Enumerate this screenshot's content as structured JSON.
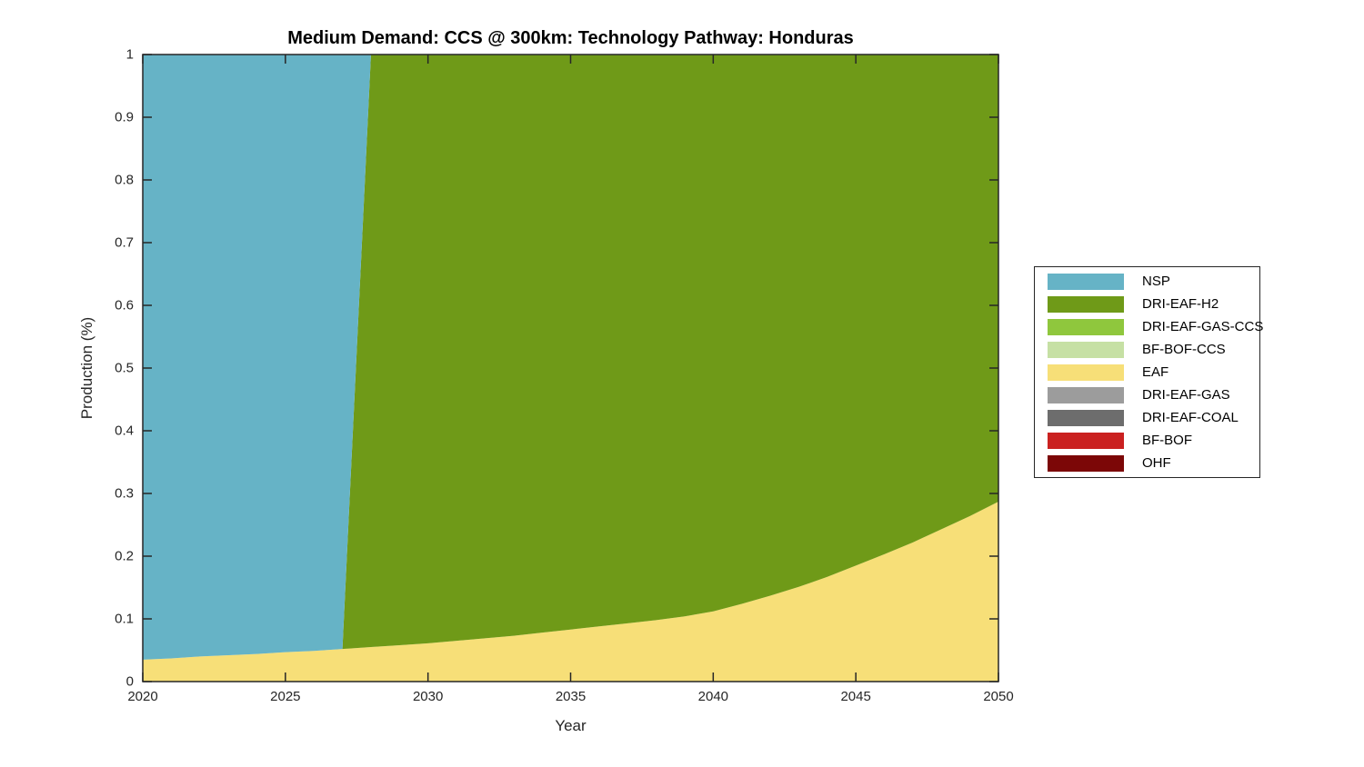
{
  "chart_data": {
    "type": "area",
    "stacked": true,
    "title": "Medium Demand: CCS @ 300km: Technology Pathway: Honduras",
    "xlabel": "Year",
    "ylabel": "Production (%)",
    "xlim": [
      2020,
      2050
    ],
    "ylim": [
      0,
      1
    ],
    "grid": false,
    "legend_position": "right-outside",
    "colors": {
      "axis": "#262626",
      "text": "#000000",
      "background": "#ffffff"
    },
    "xticks": [
      {
        "value": 2020,
        "label": "2020"
      },
      {
        "value": 2025,
        "label": "2025"
      },
      {
        "value": 2030,
        "label": "2030"
      },
      {
        "value": 2035,
        "label": "2035"
      },
      {
        "value": 2040,
        "label": "2040"
      },
      {
        "value": 2045,
        "label": "2045"
      },
      {
        "value": 2050,
        "label": "2050"
      }
    ],
    "yticks": [
      {
        "value": 0.0,
        "label": "0"
      },
      {
        "value": 0.1,
        "label": "0.1"
      },
      {
        "value": 0.2,
        "label": "0.2"
      },
      {
        "value": 0.3,
        "label": "0.3"
      },
      {
        "value": 0.4,
        "label": "0.4"
      },
      {
        "value": 0.5,
        "label": "0.5"
      },
      {
        "value": 0.6,
        "label": "0.6"
      },
      {
        "value": 0.7,
        "label": "0.7"
      },
      {
        "value": 0.8,
        "label": "0.8"
      },
      {
        "value": 0.9,
        "label": "0.9"
      },
      {
        "value": 1.0,
        "label": "1"
      }
    ],
    "x": [
      2020,
      2021,
      2022,
      2023,
      2024,
      2025,
      2026,
      2027,
      2028,
      2029,
      2030,
      2031,
      2032,
      2033,
      2034,
      2035,
      2036,
      2037,
      2038,
      2039,
      2040,
      2041,
      2042,
      2043,
      2044,
      2045,
      2046,
      2047,
      2048,
      2049,
      2050
    ],
    "stack_order": [
      "OHF",
      "BF-BOF",
      "DRI-EAF-COAL",
      "DRI-EAF-GAS",
      "EAF",
      "BF-BOF-CCS",
      "DRI-EAF-GAS-CCS",
      "DRI-EAF-H2",
      "NSP"
    ],
    "series": [
      {
        "name": "NSP",
        "color": "#66b3c6",
        "values": [
          0.965,
          0.963,
          0.96,
          0.958,
          0.956,
          0.953,
          0.951,
          0.948,
          0,
          0,
          0,
          0,
          0,
          0,
          0,
          0,
          0,
          0,
          0,
          0,
          0,
          0,
          0,
          0,
          0,
          0,
          0,
          0,
          0,
          0,
          0
        ]
      },
      {
        "name": "DRI-EAF-H2",
        "color": "#6f9a18",
        "values": [
          0,
          0,
          0,
          0,
          0,
          0,
          0,
          0,
          0.945,
          0.942,
          0.939,
          0.935,
          0.931,
          0.927,
          0.922,
          0.917,
          0.912,
          0.907,
          0.902,
          0.896,
          0.888,
          0.876,
          0.863,
          0.849,
          0.833,
          0.815,
          0.797,
          0.778,
          0.757,
          0.736,
          0.713
        ]
      },
      {
        "name": "DRI-EAF-GAS-CCS",
        "color": "#8fc73d",
        "values": [
          0,
          0,
          0,
          0,
          0,
          0,
          0,
          0,
          0,
          0,
          0,
          0,
          0,
          0,
          0,
          0,
          0,
          0,
          0,
          0,
          0,
          0,
          0,
          0,
          0,
          0,
          0,
          0,
          0,
          0,
          0
        ]
      },
      {
        "name": "BF-BOF-CCS",
        "color": "#c6e0a4",
        "values": [
          0,
          0,
          0,
          0,
          0,
          0,
          0,
          0,
          0,
          0,
          0,
          0,
          0,
          0,
          0,
          0,
          0,
          0,
          0,
          0,
          0,
          0,
          0,
          0,
          0,
          0,
          0,
          0,
          0,
          0,
          0
        ]
      },
      {
        "name": "EAF",
        "color": "#f7df78",
        "values": [
          0.035,
          0.037,
          0.04,
          0.042,
          0.044,
          0.047,
          0.049,
          0.052,
          0.055,
          0.058,
          0.061,
          0.065,
          0.069,
          0.073,
          0.078,
          0.083,
          0.088,
          0.093,
          0.098,
          0.104,
          0.112,
          0.124,
          0.137,
          0.151,
          0.167,
          0.185,
          0.203,
          0.222,
          0.243,
          0.264,
          0.287
        ]
      },
      {
        "name": "DRI-EAF-GAS",
        "color": "#9c9c9c",
        "values": [
          0,
          0,
          0,
          0,
          0,
          0,
          0,
          0,
          0,
          0,
          0,
          0,
          0,
          0,
          0,
          0,
          0,
          0,
          0,
          0,
          0,
          0,
          0,
          0,
          0,
          0,
          0,
          0,
          0,
          0,
          0
        ]
      },
      {
        "name": "DRI-EAF-COAL",
        "color": "#6d6d6d",
        "values": [
          0,
          0,
          0,
          0,
          0,
          0,
          0,
          0,
          0,
          0,
          0,
          0,
          0,
          0,
          0,
          0,
          0,
          0,
          0,
          0,
          0,
          0,
          0,
          0,
          0,
          0,
          0,
          0,
          0,
          0,
          0
        ]
      },
      {
        "name": "BF-BOF",
        "color": "#ca2120",
        "values": [
          0,
          0,
          0,
          0,
          0,
          0,
          0,
          0,
          0,
          0,
          0,
          0,
          0,
          0,
          0,
          0,
          0,
          0,
          0,
          0,
          0,
          0,
          0,
          0,
          0,
          0,
          0,
          0,
          0,
          0,
          0
        ]
      },
      {
        "name": "OHF",
        "color": "#7c0707",
        "values": [
          0,
          0,
          0,
          0,
          0,
          0,
          0,
          0,
          0,
          0,
          0,
          0,
          0,
          0,
          0,
          0,
          0,
          0,
          0,
          0,
          0,
          0,
          0,
          0,
          0,
          0,
          0,
          0,
          0,
          0,
          0
        ]
      }
    ]
  }
}
